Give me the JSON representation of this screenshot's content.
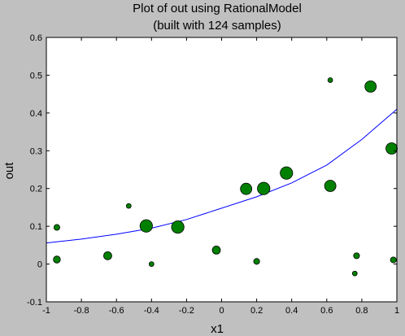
{
  "chart_data": {
    "type": "scatter",
    "title": "Plot of out using RationalModel",
    "subtitle": "(built with 124 samples)",
    "xlabel": "x1",
    "ylabel": "out",
    "xlim": [
      -1,
      1
    ],
    "ylim": [
      -0.1,
      0.6
    ],
    "x_ticks": [
      -1,
      -0.8,
      -0.6,
      -0.4,
      -0.2,
      0,
      0.2,
      0.4,
      0.6,
      0.8,
      1
    ],
    "x_tick_labels": [
      "-1",
      "-0.8",
      "-0.6",
      "-0.4",
      "-0.2",
      "0",
      "0.2",
      "0.4",
      "0.6",
      "0.8",
      "1"
    ],
    "y_ticks": [
      -0.1,
      0,
      0.1,
      0.2,
      0.3,
      0.4,
      0.5,
      0.6
    ],
    "y_tick_labels": [
      "-0.1",
      "0",
      "0.1",
      "0.2",
      "0.3",
      "0.4",
      "0.5",
      "0.6"
    ],
    "grid": false,
    "colors": {
      "points": "#008000",
      "points_edge": "#000000",
      "curve": "#0000ff",
      "plot_bg": "#ffffff",
      "figure_bg": "#c0c0c0"
    },
    "series": [
      {
        "kind": "scatter",
        "points": [
          {
            "x": -0.94,
            "y": 0.097,
            "weight": 1.5
          },
          {
            "x": -0.94,
            "y": 0.012,
            "weight": 2
          },
          {
            "x": -0.65,
            "y": 0.022,
            "weight": 2.5
          },
          {
            "x": -0.53,
            "y": 0.154,
            "weight": 1
          },
          {
            "x": -0.43,
            "y": 0.101,
            "weight": 4.5
          },
          {
            "x": -0.4,
            "y": 0.0,
            "weight": 1
          },
          {
            "x": -0.25,
            "y": 0.098,
            "weight": 4.5
          },
          {
            "x": -0.03,
            "y": 0.037,
            "weight": 2.5
          },
          {
            "x": 0.14,
            "y": 0.199,
            "weight": 4
          },
          {
            "x": 0.2,
            "y": 0.007,
            "weight": 1.5
          },
          {
            "x": 0.24,
            "y": 0.2,
            "weight": 4.5
          },
          {
            "x": 0.37,
            "y": 0.241,
            "weight": 4.5
          },
          {
            "x": 0.62,
            "y": 0.487,
            "weight": 1
          },
          {
            "x": 0.62,
            "y": 0.207,
            "weight": 4
          },
          {
            "x": 0.76,
            "y": -0.025,
            "weight": 1
          },
          {
            "x": 0.77,
            "y": 0.022,
            "weight": 1.5
          },
          {
            "x": 0.85,
            "y": 0.47,
            "weight": 4
          },
          {
            "x": 0.97,
            "y": 0.306,
            "weight": 4
          },
          {
            "x": 0.98,
            "y": 0.011,
            "weight": 1.5
          }
        ]
      },
      {
        "kind": "line",
        "x": [
          -1,
          -0.8,
          -0.6,
          -0.4,
          -0.2,
          0,
          0.2,
          0.4,
          0.6,
          0.8,
          1
        ],
        "y": [
          0.056,
          0.066,
          0.079,
          0.095,
          0.118,
          0.148,
          0.178,
          0.215,
          0.262,
          0.33,
          0.41
        ]
      }
    ]
  }
}
